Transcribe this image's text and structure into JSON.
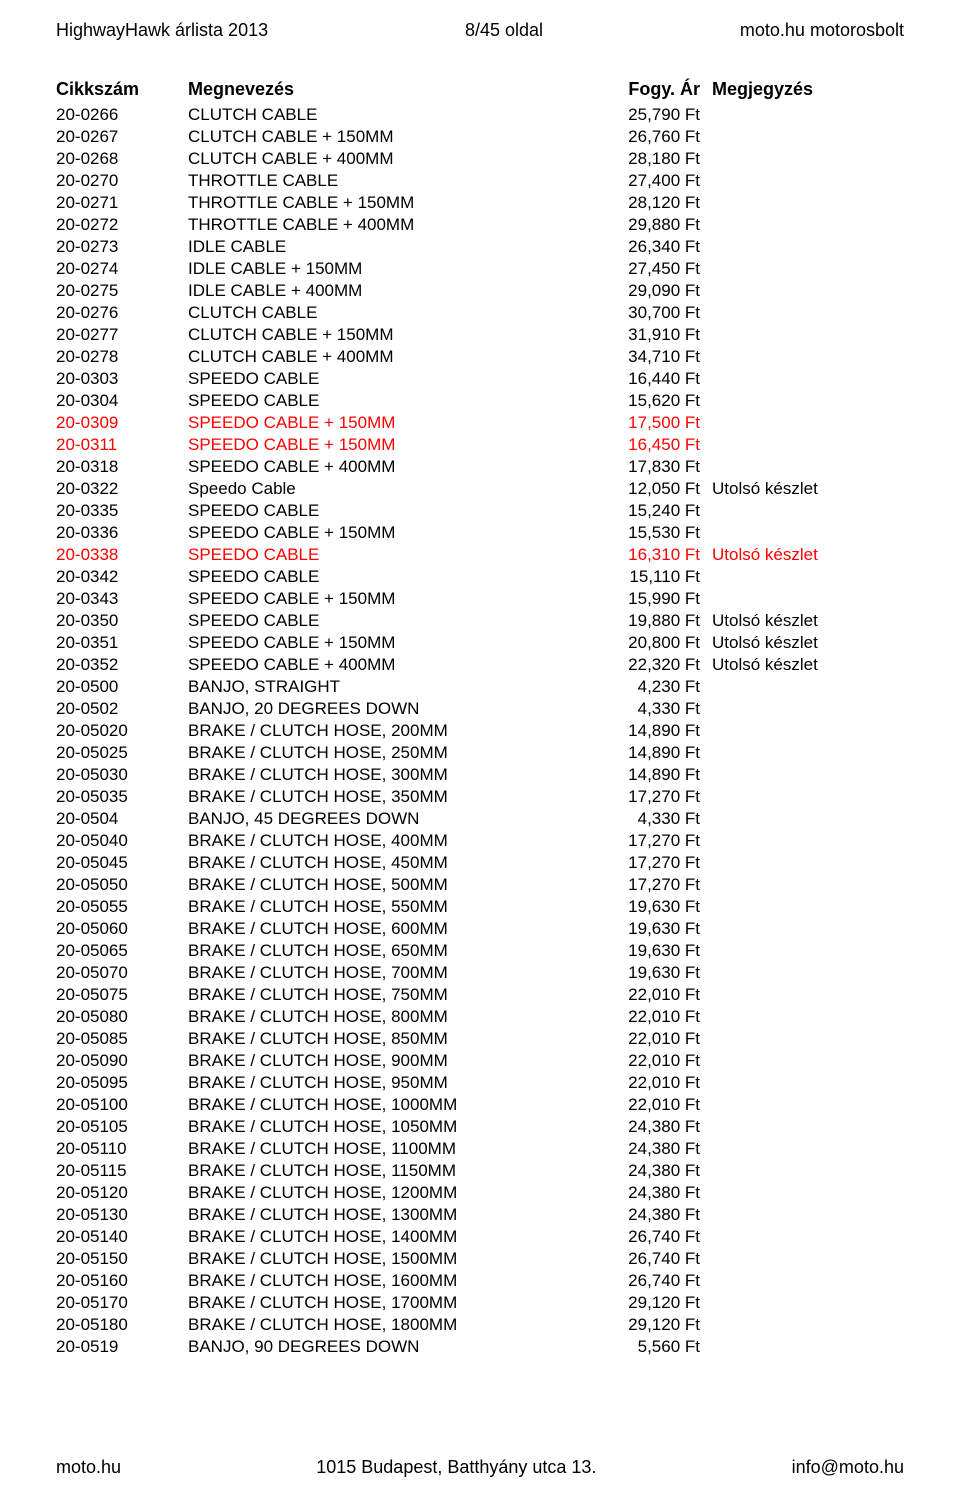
{
  "header": {
    "left": "HighwayHawk árlista 2013",
    "center": "8/45 oldal",
    "right": "moto.hu motorosbolt"
  },
  "tableHeader": {
    "cikkszam": "Cikkszám",
    "megnevezes": "Megnevezés",
    "fogy": "Fogy. Ár",
    "megjegyzes": "Megjegyzés"
  },
  "rows": [
    {
      "c": "20-0266",
      "n": "CLUTCH CABLE",
      "p": "25,790 Ft",
      "m": "",
      "red": false
    },
    {
      "c": "20-0267",
      "n": "CLUTCH CABLE + 150MM",
      "p": "26,760 Ft",
      "m": "",
      "red": false
    },
    {
      "c": "20-0268",
      "n": "CLUTCH CABLE + 400MM",
      "p": "28,180 Ft",
      "m": "",
      "red": false
    },
    {
      "c": "20-0270",
      "n": "THROTTLE CABLE",
      "p": "27,400 Ft",
      "m": "",
      "red": false
    },
    {
      "c": "20-0271",
      "n": "THROTTLE CABLE + 150MM",
      "p": "28,120 Ft",
      "m": "",
      "red": false
    },
    {
      "c": "20-0272",
      "n": "THROTTLE CABLE + 400MM",
      "p": "29,880 Ft",
      "m": "",
      "red": false
    },
    {
      "c": "20-0273",
      "n": "IDLE CABLE",
      "p": "26,340 Ft",
      "m": "",
      "red": false
    },
    {
      "c": "20-0274",
      "n": "IDLE CABLE + 150MM",
      "p": "27,450 Ft",
      "m": "",
      "red": false
    },
    {
      "c": "20-0275",
      "n": "IDLE CABLE + 400MM",
      "p": "29,090 Ft",
      "m": "",
      "red": false
    },
    {
      "c": "20-0276",
      "n": "CLUTCH CABLE",
      "p": "30,700 Ft",
      "m": "",
      "red": false
    },
    {
      "c": "20-0277",
      "n": "CLUTCH CABLE + 150MM",
      "p": "31,910 Ft",
      "m": "",
      "red": false
    },
    {
      "c": "20-0278",
      "n": "CLUTCH CABLE + 400MM",
      "p": "34,710 Ft",
      "m": "",
      "red": false
    },
    {
      "c": "20-0303",
      "n": "SPEEDO CABLE",
      "p": "16,440 Ft",
      "m": "",
      "red": false
    },
    {
      "c": "20-0304",
      "n": "SPEEDO CABLE",
      "p": "15,620 Ft",
      "m": "",
      "red": false
    },
    {
      "c": "20-0309",
      "n": "SPEEDO CABLE + 150MM",
      "p": "17,500 Ft",
      "m": "",
      "red": true
    },
    {
      "c": "20-0311",
      "n": "SPEEDO CABLE + 150MM",
      "p": "16,450 Ft",
      "m": "",
      "red": true
    },
    {
      "c": "20-0318",
      "n": "SPEEDO CABLE + 400MM",
      "p": "17,830 Ft",
      "m": "",
      "red": false
    },
    {
      "c": "20-0322",
      "n": "Speedo Cable",
      "p": "12,050 Ft",
      "m": "Utolsó készlet",
      "red": false
    },
    {
      "c": "20-0335",
      "n": "SPEEDO CABLE",
      "p": "15,240 Ft",
      "m": "",
      "red": false
    },
    {
      "c": "20-0336",
      "n": "SPEEDO CABLE + 150MM",
      "p": "15,530 Ft",
      "m": "",
      "red": false
    },
    {
      "c": "20-0338",
      "n": "SPEEDO CABLE",
      "p": "16,310 Ft",
      "m": "Utolsó készlet",
      "red": true
    },
    {
      "c": "20-0342",
      "n": "SPEEDO CABLE",
      "p": "15,110 Ft",
      "m": "",
      "red": false
    },
    {
      "c": "20-0343",
      "n": "SPEEDO CABLE + 150MM",
      "p": "15,990 Ft",
      "m": "",
      "red": false
    },
    {
      "c": "20-0350",
      "n": "SPEEDO CABLE",
      "p": "19,880 Ft",
      "m": "Utolsó készlet",
      "red": false
    },
    {
      "c": "20-0351",
      "n": "SPEEDO CABLE + 150MM",
      "p": "20,800 Ft",
      "m": "Utolsó készlet",
      "red": false
    },
    {
      "c": "20-0352",
      "n": "SPEEDO CABLE + 400MM",
      "p": "22,320 Ft",
      "m": "Utolsó készlet",
      "red": false
    },
    {
      "c": "20-0500",
      "n": "BANJO, STRAIGHT",
      "p": "4,230 Ft",
      "m": "",
      "red": false
    },
    {
      "c": "20-0502",
      "n": "BANJO, 20 DEGREES DOWN",
      "p": "4,330 Ft",
      "m": "",
      "red": false
    },
    {
      "c": "20-05020",
      "n": "BRAKE / CLUTCH HOSE, 200MM",
      "p": "14,890 Ft",
      "m": "",
      "red": false
    },
    {
      "c": "20-05025",
      "n": "BRAKE / CLUTCH HOSE, 250MM",
      "p": "14,890 Ft",
      "m": "",
      "red": false
    },
    {
      "c": "20-05030",
      "n": "BRAKE / CLUTCH HOSE, 300MM",
      "p": "14,890 Ft",
      "m": "",
      "red": false
    },
    {
      "c": "20-05035",
      "n": "BRAKE / CLUTCH HOSE, 350MM",
      "p": "17,270 Ft",
      "m": "",
      "red": false
    },
    {
      "c": "20-0504",
      "n": "BANJO, 45 DEGREES DOWN",
      "p": "4,330 Ft",
      "m": "",
      "red": false
    },
    {
      "c": "20-05040",
      "n": "BRAKE / CLUTCH HOSE, 400MM",
      "p": "17,270 Ft",
      "m": "",
      "red": false
    },
    {
      "c": "20-05045",
      "n": "BRAKE / CLUTCH HOSE, 450MM",
      "p": "17,270 Ft",
      "m": "",
      "red": false
    },
    {
      "c": "20-05050",
      "n": "BRAKE / CLUTCH HOSE, 500MM",
      "p": "17,270 Ft",
      "m": "",
      "red": false
    },
    {
      "c": "20-05055",
      "n": "BRAKE / CLUTCH HOSE, 550MM",
      "p": "19,630 Ft",
      "m": "",
      "red": false
    },
    {
      "c": "20-05060",
      "n": "BRAKE / CLUTCH HOSE, 600MM",
      "p": "19,630 Ft",
      "m": "",
      "red": false
    },
    {
      "c": "20-05065",
      "n": "BRAKE / CLUTCH HOSE, 650MM",
      "p": "19,630 Ft",
      "m": "",
      "red": false
    },
    {
      "c": "20-05070",
      "n": "BRAKE / CLUTCH HOSE, 700MM",
      "p": "19,630 Ft",
      "m": "",
      "red": false
    },
    {
      "c": "20-05075",
      "n": "BRAKE / CLUTCH HOSE, 750MM",
      "p": "22,010 Ft",
      "m": "",
      "red": false
    },
    {
      "c": "20-05080",
      "n": "BRAKE / CLUTCH HOSE, 800MM",
      "p": "22,010 Ft",
      "m": "",
      "red": false
    },
    {
      "c": "20-05085",
      "n": "BRAKE / CLUTCH HOSE, 850MM",
      "p": "22,010 Ft",
      "m": "",
      "red": false
    },
    {
      "c": "20-05090",
      "n": "BRAKE / CLUTCH HOSE, 900MM",
      "p": "22,010 Ft",
      "m": "",
      "red": false
    },
    {
      "c": "20-05095",
      "n": "BRAKE / CLUTCH HOSE, 950MM",
      "p": "22,010 Ft",
      "m": "",
      "red": false
    },
    {
      "c": "20-05100",
      "n": "BRAKE / CLUTCH HOSE, 1000MM",
      "p": "22,010 Ft",
      "m": "",
      "red": false
    },
    {
      "c": "20-05105",
      "n": "BRAKE / CLUTCH HOSE, 1050MM",
      "p": "24,380 Ft",
      "m": "",
      "red": false
    },
    {
      "c": "20-05110",
      "n": "BRAKE / CLUTCH HOSE, 1100MM",
      "p": "24,380 Ft",
      "m": "",
      "red": false
    },
    {
      "c": "20-05115",
      "n": "BRAKE / CLUTCH HOSE, 1150MM",
      "p": "24,380 Ft",
      "m": "",
      "red": false
    },
    {
      "c": "20-05120",
      "n": "BRAKE / CLUTCH HOSE, 1200MM",
      "p": "24,380 Ft",
      "m": "",
      "red": false
    },
    {
      "c": "20-05130",
      "n": "BRAKE / CLUTCH HOSE, 1300MM",
      "p": "24,380 Ft",
      "m": "",
      "red": false
    },
    {
      "c": "20-05140",
      "n": "BRAKE / CLUTCH HOSE, 1400MM",
      "p": "26,740 Ft",
      "m": "",
      "red": false
    },
    {
      "c": "20-05150",
      "n": "BRAKE / CLUTCH HOSE, 1500MM",
      "p": "26,740 Ft",
      "m": "",
      "red": false
    },
    {
      "c": "20-05160",
      "n": "BRAKE / CLUTCH HOSE, 1600MM",
      "p": "26,740 Ft",
      "m": "",
      "red": false
    },
    {
      "c": "20-05170",
      "n": "BRAKE / CLUTCH HOSE, 1700MM",
      "p": "29,120 Ft",
      "m": "",
      "red": false
    },
    {
      "c": "20-05180",
      "n": "BRAKE / CLUTCH HOSE, 1800MM",
      "p": "29,120 Ft",
      "m": "",
      "red": false
    },
    {
      "c": "20-0519",
      "n": "BANJO, 90 DEGREES DOWN",
      "p": "5,560 Ft",
      "m": "",
      "red": false
    }
  ],
  "footer": {
    "left": "moto.hu",
    "center": "1015 Budapest, Batthyány utca 13.",
    "right": "info@moto.hu"
  }
}
